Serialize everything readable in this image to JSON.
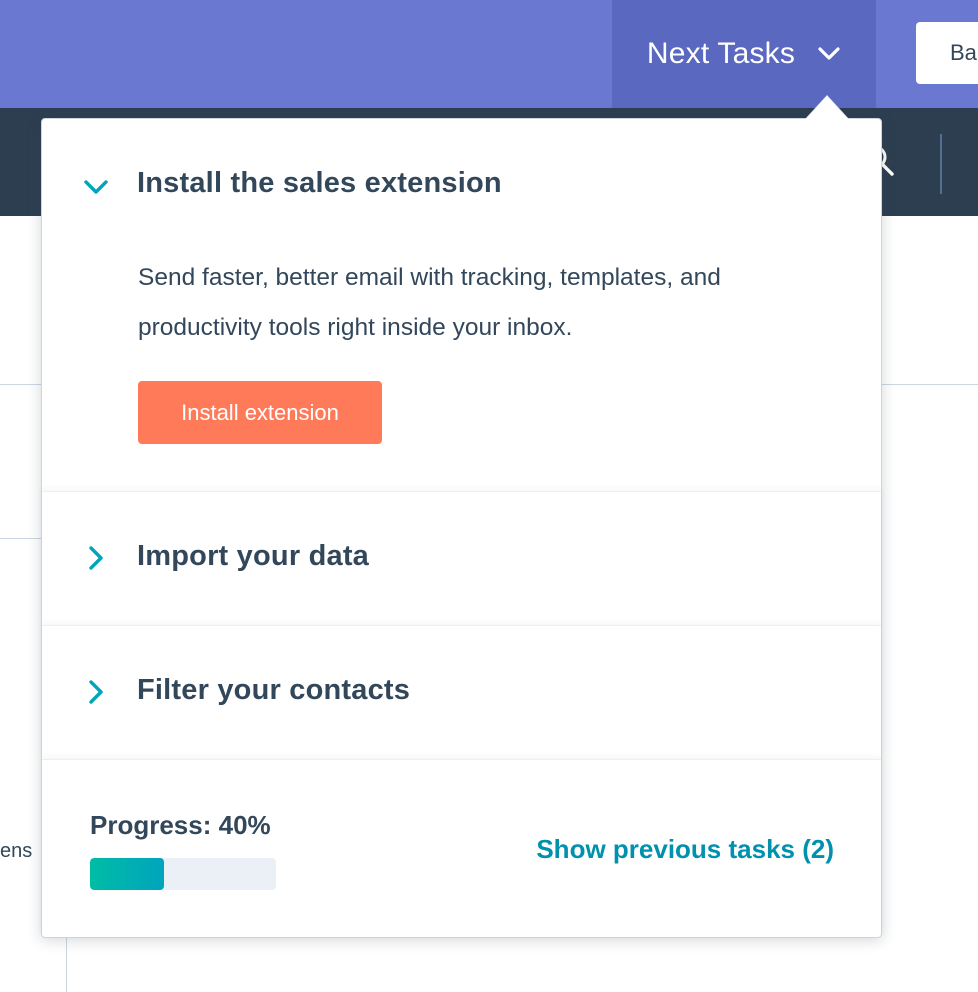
{
  "header": {
    "next_tasks_label": "Next Tasks",
    "next_tasks_icon": "chevron-down-icon",
    "back_button_label": "Ba"
  },
  "navbar": {
    "search_icon": "search-icon"
  },
  "background": {
    "partial_text": "ens"
  },
  "tasks_panel": {
    "tasks": [
      {
        "title": "Install the sales extension",
        "expanded": true,
        "icon": "chevron-down-icon",
        "description": "Send faster, better email with tracking, templates, and productivity tools right inside your inbox.",
        "button_label": "Install extension"
      },
      {
        "title": "Import your data",
        "expanded": false,
        "icon": "chevron-right-icon"
      },
      {
        "title": "Filter your contacts",
        "expanded": false,
        "icon": "chevron-right-icon"
      }
    ],
    "footer": {
      "progress_label": "Progress: 40%",
      "progress_value": 0.4,
      "show_previous_label": "Show previous tasks (2)"
    }
  },
  "colors": {
    "topbar": "#6a78d1",
    "topbar_active": "#5b68bf",
    "navbar": "#2d3e50",
    "text": "#33475b",
    "accent_teal": "#00a4bd",
    "link": "#0091ae",
    "cta": "#ff7a59",
    "progress_start": "#00bda5",
    "progress_end": "#00a4bd"
  }
}
